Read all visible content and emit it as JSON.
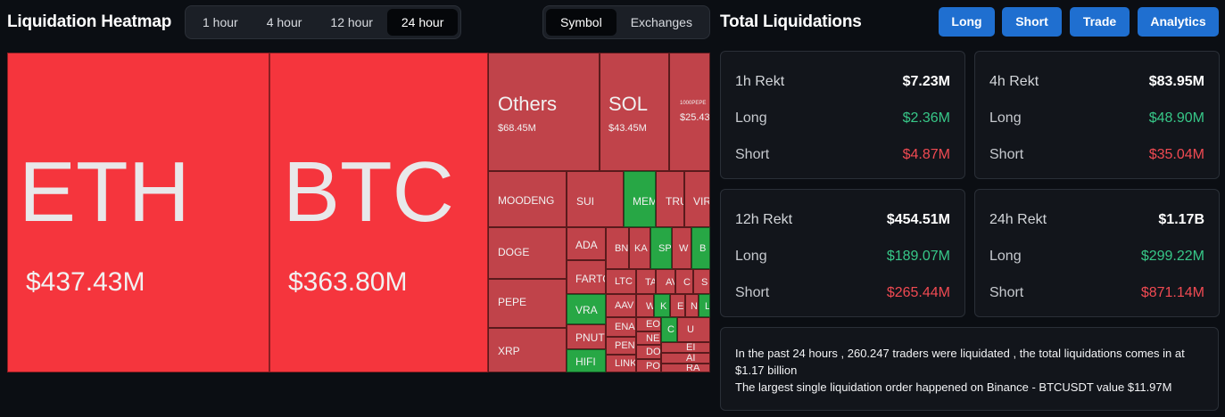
{
  "heatmap": {
    "title": "Liquidation Heatmap",
    "time_tabs": [
      "1 hour",
      "4 hour",
      "12 hour",
      "24 hour"
    ],
    "active_time_tab": "24 hour",
    "view_tabs": [
      "Symbol",
      "Exchanges"
    ],
    "active_view_tab": "Symbol",
    "cells": {
      "eth": {
        "symbol": "ETH",
        "value": "$437.43M"
      },
      "btc": {
        "symbol": "BTC",
        "value": "$363.80M"
      },
      "others": {
        "symbol": "Others",
        "value": "$68.45M"
      },
      "sol": {
        "symbol": "SOL",
        "value": "$43.45M"
      },
      "pepe1000": {
        "symbol": "1000PEPE",
        "value": "$25.43"
      },
      "moodeng": {
        "symbol": "MOODENG"
      },
      "sui": {
        "symbol": "SUI"
      },
      "mem": {
        "symbol": "MEM"
      },
      "tru": {
        "symbol": "TRU"
      },
      "vir": {
        "symbol": "VIR"
      },
      "doge": {
        "symbol": "DOGE"
      },
      "ada": {
        "symbol": "ADA"
      },
      "bn": {
        "symbol": "BN"
      },
      "ka": {
        "symbol": "KA"
      },
      "sp": {
        "symbol": "SP"
      },
      "w": {
        "symbol": "W"
      },
      "b": {
        "symbol": "B"
      },
      "farto": {
        "symbol": "FARTO"
      },
      "pepe": {
        "symbol": "PEPE"
      },
      "ltc": {
        "symbol": "LTC"
      },
      "ta": {
        "symbol": "TA"
      },
      "av": {
        "symbol": "AV"
      },
      "c": {
        "symbol": "C"
      },
      "s": {
        "symbol": "S"
      },
      "vra": {
        "symbol": "VRA"
      },
      "aav": {
        "symbol": "AAV"
      },
      "w2": {
        "symbol": "W"
      },
      "k": {
        "symbol": "K"
      },
      "e": {
        "symbol": "E"
      },
      "n": {
        "symbol": "N"
      },
      "l": {
        "symbol": "L"
      },
      "xrp": {
        "symbol": "XRP"
      },
      "pnut": {
        "symbol": "PNUT"
      },
      "ena": {
        "symbol": "ENA"
      },
      "eo": {
        "symbol": "EO"
      },
      "ne": {
        "symbol": "NE"
      },
      "c2": {
        "symbol": "C"
      },
      "u": {
        "symbol": "U"
      },
      "hifi": {
        "symbol": "HIFI"
      },
      "pen": {
        "symbol": "PEN"
      },
      "do": {
        "symbol": "DO"
      },
      "ei": {
        "symbol": "EI"
      },
      "ai": {
        "symbol": "AI"
      },
      "link": {
        "symbol": "LINK"
      },
      "po": {
        "symbol": "PO"
      },
      "ra": {
        "symbol": "RA"
      }
    }
  },
  "total": {
    "title": "Total Liquidations",
    "buttons": [
      "Long",
      "Short",
      "Trade",
      "Analytics"
    ],
    "cards": [
      {
        "label": "1h Rekt",
        "total": "$7.23M",
        "long_label": "Long",
        "long": "$2.36M",
        "short_label": "Short",
        "short": "$4.87M"
      },
      {
        "label": "4h Rekt",
        "total": "$83.95M",
        "long_label": "Long",
        "long": "$48.90M",
        "short_label": "Short",
        "short": "$35.04M"
      },
      {
        "label": "12h Rekt",
        "total": "$454.51M",
        "long_label": "Long",
        "long": "$189.07M",
        "short_label": "Short",
        "short": "$265.44M"
      },
      {
        "label": "24h Rekt",
        "total": "$1.17B",
        "long_label": "Long",
        "long": "$299.22M",
        "short_label": "Short",
        "short": "$871.14M"
      }
    ],
    "summary": {
      "line1": "In the past 24 hours , 260.247 traders were liquidated , the total liquidations comes in at $1.17 billion",
      "line2": "The largest single liquidation order happened on Binance - BTCUSDT value $11.97M"
    }
  },
  "colors": {
    "background": "#0b0e13",
    "accent": "#1f6fd0",
    "cell_red": "#c0434a",
    "cell_bright_red": "#f5353d",
    "cell_green": "#27a745",
    "long_green": "#37c788",
    "short_red": "#f04a52"
  }
}
